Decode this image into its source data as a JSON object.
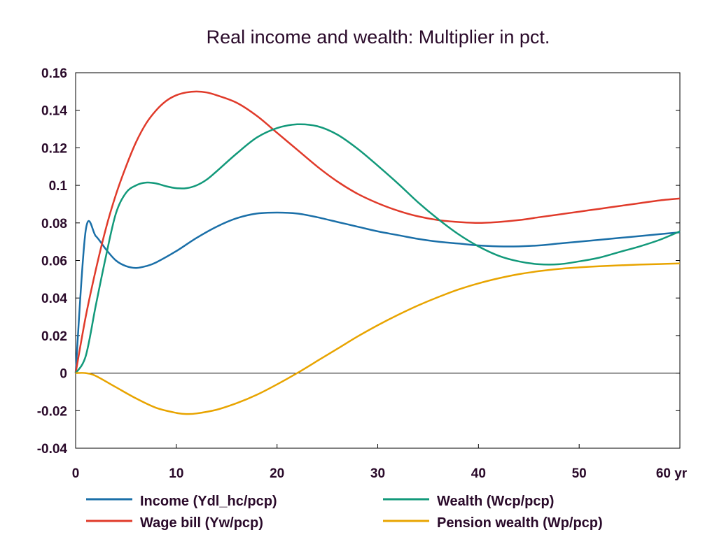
{
  "chart_data": {
    "type": "line",
    "title": "Real income and wealth: Multiplier in pct.",
    "x_unit_label": "yr",
    "xlim": [
      0,
      60
    ],
    "ylim": [
      -0.04,
      0.16
    ],
    "x_ticks": [
      0,
      10,
      20,
      30,
      40,
      50,
      60
    ],
    "x_tick_labels": [
      "0",
      "10",
      "20",
      "30",
      "40",
      "50",
      "60 yr"
    ],
    "y_ticks": [
      -0.04,
      -0.02,
      0,
      0.02,
      0.04,
      0.06,
      0.08,
      0.1,
      0.12,
      0.14,
      0.16
    ],
    "y_tick_labels": [
      "-0.04",
      "-0.02",
      "0",
      "0.02",
      "0.04",
      "0.06",
      "0.08",
      "0.1",
      "0.12",
      "0.14",
      "0.16"
    ],
    "zero_line": true,
    "legend_position": "bottom",
    "series": [
      {
        "name": "Income (Ydl_hc/pcp)",
        "color": "#1a6fa8",
        "points": [
          [
            0,
            0
          ],
          [
            1,
            0.076
          ],
          [
            2,
            0.073
          ],
          [
            3,
            0.066
          ],
          [
            4,
            0.06
          ],
          [
            5,
            0.057
          ],
          [
            6,
            0.056
          ],
          [
            7,
            0.057
          ],
          [
            8,
            0.059
          ],
          [
            10,
            0.065
          ],
          [
            12,
            0.072
          ],
          [
            14,
            0.078
          ],
          [
            16,
            0.0825
          ],
          [
            18,
            0.085
          ],
          [
            20,
            0.0855
          ],
          [
            22,
            0.085
          ],
          [
            24,
            0.083
          ],
          [
            26,
            0.0805
          ],
          [
            28,
            0.078
          ],
          [
            30,
            0.0755
          ],
          [
            32,
            0.0735
          ],
          [
            34,
            0.0715
          ],
          [
            36,
            0.07
          ],
          [
            38,
            0.069
          ],
          [
            40,
            0.068
          ],
          [
            42,
            0.0675
          ],
          [
            44,
            0.0675
          ],
          [
            46,
            0.068
          ],
          [
            48,
            0.069
          ],
          [
            50,
            0.07
          ],
          [
            52,
            0.071
          ],
          [
            54,
            0.072
          ],
          [
            56,
            0.073
          ],
          [
            58,
            0.074
          ],
          [
            60,
            0.075
          ]
        ]
      },
      {
        "name": "Wage bill (Yw/pcp)",
        "color": "#e03a2a",
        "points": [
          [
            0,
            0
          ],
          [
            1,
            0.03
          ],
          [
            2,
            0.055
          ],
          [
            3,
            0.077
          ],
          [
            4,
            0.095
          ],
          [
            5,
            0.11
          ],
          [
            6,
            0.123
          ],
          [
            7,
            0.133
          ],
          [
            8,
            0.14
          ],
          [
            9,
            0.145
          ],
          [
            10,
            0.148
          ],
          [
            11,
            0.1495
          ],
          [
            12,
            0.15
          ],
          [
            13,
            0.1495
          ],
          [
            14,
            0.148
          ],
          [
            16,
            0.144
          ],
          [
            18,
            0.137
          ],
          [
            20,
            0.128
          ],
          [
            22,
            0.119
          ],
          [
            24,
            0.11
          ],
          [
            26,
            0.102
          ],
          [
            28,
            0.0955
          ],
          [
            30,
            0.0905
          ],
          [
            32,
            0.0865
          ],
          [
            34,
            0.0835
          ],
          [
            36,
            0.0815
          ],
          [
            38,
            0.0805
          ],
          [
            40,
            0.08
          ],
          [
            42,
            0.0805
          ],
          [
            44,
            0.0815
          ],
          [
            46,
            0.083
          ],
          [
            48,
            0.0845
          ],
          [
            50,
            0.086
          ],
          [
            52,
            0.0875
          ],
          [
            54,
            0.089
          ],
          [
            56,
            0.0905
          ],
          [
            58,
            0.092
          ],
          [
            60,
            0.093
          ]
        ]
      },
      {
        "name": "Wealth (Wcp/pcp)",
        "color": "#12997a",
        "points": [
          [
            0,
            0
          ],
          [
            1,
            0.009
          ],
          [
            2,
            0.036
          ],
          [
            3,
            0.062
          ],
          [
            4,
            0.085
          ],
          [
            5,
            0.096
          ],
          [
            6,
            0.1
          ],
          [
            7,
            0.1015
          ],
          [
            8,
            0.101
          ],
          [
            9,
            0.0995
          ],
          [
            10,
            0.0985
          ],
          [
            11,
            0.0985
          ],
          [
            12,
            0.1
          ],
          [
            13,
            0.103
          ],
          [
            14,
            0.1075
          ],
          [
            16,
            0.117
          ],
          [
            18,
            0.1255
          ],
          [
            20,
            0.1305
          ],
          [
            22,
            0.1325
          ],
          [
            24,
            0.1315
          ],
          [
            26,
            0.127
          ],
          [
            28,
            0.1195
          ],
          [
            30,
            0.1105
          ],
          [
            32,
            0.101
          ],
          [
            34,
            0.091
          ],
          [
            36,
            0.082
          ],
          [
            38,
            0.074
          ],
          [
            40,
            0.0675
          ],
          [
            42,
            0.0625
          ],
          [
            44,
            0.0595
          ],
          [
            46,
            0.058
          ],
          [
            48,
            0.058
          ],
          [
            50,
            0.0595
          ],
          [
            52,
            0.0615
          ],
          [
            54,
            0.0645
          ],
          [
            56,
            0.0675
          ],
          [
            58,
            0.071
          ],
          [
            60,
            0.0755
          ]
        ]
      },
      {
        "name": "Pension wealth (Wp/pcp)",
        "color": "#e8a400",
        "points": [
          [
            0,
            0
          ],
          [
            1,
            0
          ],
          [
            2,
            -0.0015
          ],
          [
            4,
            -0.0075
          ],
          [
            6,
            -0.0135
          ],
          [
            8,
            -0.0185
          ],
          [
            10,
            -0.0212
          ],
          [
            11,
            -0.0218
          ],
          [
            12,
            -0.0215
          ],
          [
            14,
            -0.0195
          ],
          [
            16,
            -0.016
          ],
          [
            18,
            -0.0115
          ],
          [
            20,
            -0.006
          ],
          [
            22,
            0
          ],
          [
            24,
            0.0065
          ],
          [
            26,
            0.013
          ],
          [
            28,
            0.0195
          ],
          [
            30,
            0.0255
          ],
          [
            32,
            0.031
          ],
          [
            34,
            0.036
          ],
          [
            36,
            0.0405
          ],
          [
            38,
            0.0445
          ],
          [
            40,
            0.0478
          ],
          [
            42,
            0.0505
          ],
          [
            44,
            0.0527
          ],
          [
            46,
            0.0543
          ],
          [
            48,
            0.0555
          ],
          [
            50,
            0.0563
          ],
          [
            52,
            0.0569
          ],
          [
            54,
            0.0574
          ],
          [
            56,
            0.0578
          ],
          [
            58,
            0.0581
          ],
          [
            60,
            0.0584
          ]
        ]
      }
    ],
    "legend": [
      {
        "label": "Income (Ydl_hc/pcp)",
        "color": "#1a6fa8"
      },
      {
        "label": "Wealth (Wcp/pcp)",
        "color": "#12997a"
      },
      {
        "label": "Wage bill (Yw/pcp)",
        "color": "#e03a2a"
      },
      {
        "label": "Pension wealth (Wp/pcp)",
        "color": "#e8a400"
      }
    ]
  }
}
